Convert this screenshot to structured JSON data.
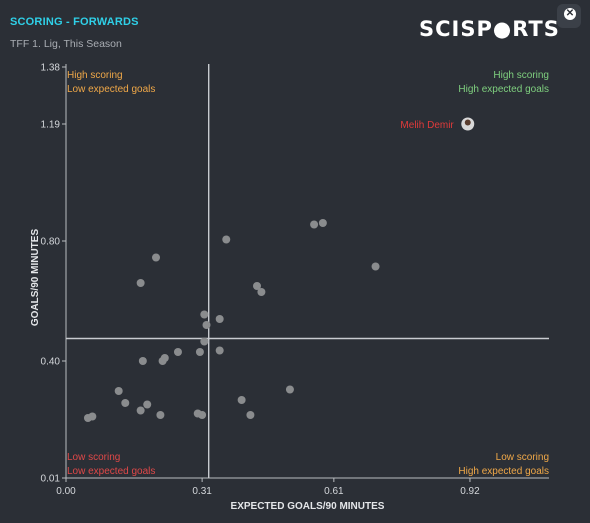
{
  "header": {
    "title": "SCORING - FORWARDS",
    "subtitle": "TFF 1. Lig, This Season",
    "logo_text": "SCISP●RTS"
  },
  "colors": {
    "background": "#2b2f36",
    "title": "#2fd0e8",
    "point": "#8a8c8e",
    "highlight_label": "#e03a3a",
    "green": "#7fd07f",
    "orange": "#f0a848",
    "red": "#e04848"
  },
  "quadrants": {
    "top_left": [
      "High scoring",
      "Low expected goals"
    ],
    "top_right": [
      "High scoring",
      "High expected goals"
    ],
    "bottom_left": [
      "Low scoring",
      "Low expected goals"
    ],
    "bottom_right": [
      "Low scoring",
      "High expected goals"
    ]
  },
  "chart_data": {
    "type": "scatter",
    "xlabel": "EXPECTED GOALS/90 MINUTES",
    "ylabel": "GOALS/90 MINUTES",
    "xlim": [
      0,
      1.1
    ],
    "ylim": [
      0.01,
      1.38
    ],
    "x_ticks": [
      0.0,
      0.31,
      0.61,
      0.92
    ],
    "x_tick_labels": [
      "0.00",
      "0.31",
      "0.61",
      "0.92"
    ],
    "y_ticks": [
      0.01,
      0.4,
      0.8,
      1.19,
      1.38
    ],
    "y_tick_labels": [
      "0.01",
      "0.40",
      "0.80",
      "1.19",
      "1.38"
    ],
    "reference_lines": {
      "x": 0.325,
      "y": 0.475
    },
    "highlight": {
      "name": "Melih Demir",
      "x": 0.915,
      "y": 1.19
    },
    "points": [
      {
        "x": 0.05,
        "y": 0.21
      },
      {
        "x": 0.06,
        "y": 0.215
      },
      {
        "x": 0.12,
        "y": 0.3
      },
      {
        "x": 0.135,
        "y": 0.26
      },
      {
        "x": 0.17,
        "y": 0.235
      },
      {
        "x": 0.185,
        "y": 0.255
      },
      {
        "x": 0.215,
        "y": 0.22
      },
      {
        "x": 0.175,
        "y": 0.4
      },
      {
        "x": 0.22,
        "y": 0.4
      },
      {
        "x": 0.225,
        "y": 0.41
      },
      {
        "x": 0.255,
        "y": 0.43
      },
      {
        "x": 0.17,
        "y": 0.66
      },
      {
        "x": 0.205,
        "y": 0.745
      },
      {
        "x": 0.3,
        "y": 0.225
      },
      {
        "x": 0.31,
        "y": 0.22
      },
      {
        "x": 0.305,
        "y": 0.43
      },
      {
        "x": 0.315,
        "y": 0.465
      },
      {
        "x": 0.32,
        "y": 0.52
      },
      {
        "x": 0.315,
        "y": 0.555
      },
      {
        "x": 0.35,
        "y": 0.54
      },
      {
        "x": 0.35,
        "y": 0.435
      },
      {
        "x": 0.365,
        "y": 0.805
      },
      {
        "x": 0.4,
        "y": 0.27
      },
      {
        "x": 0.42,
        "y": 0.22
      },
      {
        "x": 0.435,
        "y": 0.65
      },
      {
        "x": 0.445,
        "y": 0.63
      },
      {
        "x": 0.51,
        "y": 0.305
      },
      {
        "x": 0.565,
        "y": 0.855
      },
      {
        "x": 0.585,
        "y": 0.86
      },
      {
        "x": 0.705,
        "y": 0.715
      }
    ]
  }
}
